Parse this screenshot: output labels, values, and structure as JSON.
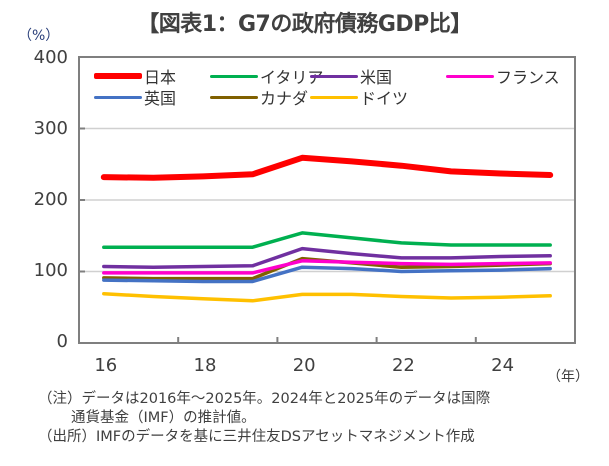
{
  "chart_data": {
    "type": "line",
    "title": "【図表1：G7の政府債務GDP比】",
    "ylabel": "（%）",
    "xlabel": "（年）",
    "ylim": [
      0,
      400
    ],
    "yticks": [
      0,
      100,
      200,
      300,
      400
    ],
    "x": [
      2016,
      2017,
      2018,
      2019,
      2020,
      2021,
      2022,
      2023,
      2024,
      2025
    ],
    "xtick_labels": [
      {
        "year": 2016,
        "label": "16"
      },
      {
        "year": 2018,
        "label": "18"
      },
      {
        "year": 2020,
        "label": "20"
      },
      {
        "year": 2022,
        "label": "22"
      },
      {
        "year": 2024,
        "label": "24"
      }
    ],
    "grid": true,
    "legend_position": "top",
    "series": [
      {
        "name": "日本",
        "color": "#ff0000",
        "width": "thick",
        "values": [
          232,
          231,
          233,
          236,
          259,
          254,
          248,
          240,
          237,
          235
        ]
      },
      {
        "name": "イタリア",
        "color": "#00b050",
        "values": [
          134,
          134,
          134,
          134,
          154,
          147,
          140,
          137,
          137,
          137
        ]
      },
      {
        "name": "米国",
        "color": "#7030a0",
        "values": [
          107,
          106,
          107,
          108,
          132,
          125,
          119,
          119,
          121,
          122
        ]
      },
      {
        "name": "フランス",
        "color": "#ff00cc",
        "values": [
          98,
          98,
          98,
          98,
          115,
          113,
          111,
          110,
          111,
          112
        ]
      },
      {
        "name": "英国",
        "color": "#4472c4",
        "values": [
          88,
          87,
          86,
          86,
          106,
          104,
          100,
          101,
          102,
          104
        ]
      },
      {
        "name": "カナダ",
        "color": "#806000",
        "values": [
          91,
          90,
          90,
          90,
          118,
          112,
          106,
          107,
          109,
          111
        ]
      },
      {
        "name": "ドイツ",
        "color": "#ffc000",
        "values": [
          69,
          65,
          62,
          59,
          68,
          68,
          65,
          63,
          64,
          66
        ]
      }
    ]
  },
  "notes": [
    "（注）データは2016年～2025年。2024年と2025年のデータは国際",
    "通貨基金（IMF）の推計値。",
    "（出所）IMFのデータを基に三井住友DSアセットマネジメント作成"
  ]
}
